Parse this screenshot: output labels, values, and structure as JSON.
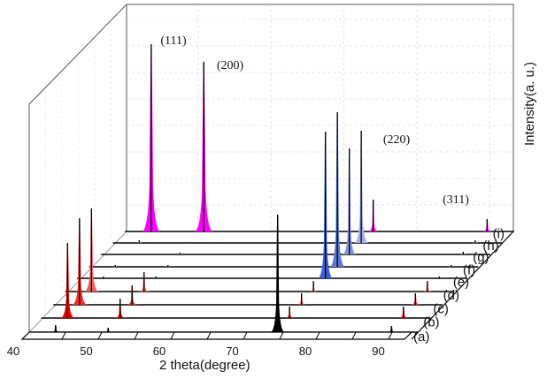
{
  "chart_data": {
    "type": "line",
    "subtype": "3d-waterfall-xrd",
    "title": "",
    "xlabel": "2 theta(degree)",
    "zlabel": "Intensity(a. u.)",
    "xlim": [
      40,
      95
    ],
    "x_ticks": [
      40,
      50,
      60,
      70,
      80,
      90
    ],
    "x_tick_labels": [
      "40",
      "50",
      "60",
      "70",
      "80",
      "90"
    ],
    "intensity_range": [
      0,
      220
    ],
    "grid": true,
    "peak_positions": [
      45.8,
      53.0,
      76.2,
      91.8
    ],
    "annotations": [
      {
        "text": "(111)",
        "x": 45.8
      },
      {
        "text": "(200)",
        "x": 53.0
      },
      {
        "text": "(220)",
        "x": 76.2
      },
      {
        "text": "(311)",
        "x": 91.8
      }
    ],
    "series": [
      {
        "name": "(a)",
        "color": "#000000",
        "intensities": [
          8,
          5,
          133,
          7
        ]
      },
      {
        "name": "(b)",
        "color": "#e80000",
        "intensities": [
          85,
          22,
          13,
          13
        ]
      },
      {
        "name": "(c)",
        "color": "#f03030",
        "intensities": [
          98,
          22,
          13,
          13
        ]
      },
      {
        "name": "(d)",
        "color": "#f06060",
        "intensities": [
          94,
          22,
          12,
          12
        ]
      },
      {
        "name": "(e)",
        "color": "#3a5fd0",
        "intensities": [
          2,
          2,
          166,
          2
        ]
      },
      {
        "name": "(f)",
        "color": "#5a78d8",
        "intensities": [
          2,
          2,
          175,
          2
        ]
      },
      {
        "name": "(g)",
        "color": "#7f95e0",
        "intensities": [
          1,
          2,
          120,
          3
        ]
      },
      {
        "name": "(h)",
        "color": "#9fb0ea",
        "intensities": [
          3,
          1,
          127,
          3
        ]
      },
      {
        "name": "(i)",
        "color": "#ff00ff",
        "intensities": [
          212,
          192,
          36,
          14
        ]
      }
    ]
  }
}
